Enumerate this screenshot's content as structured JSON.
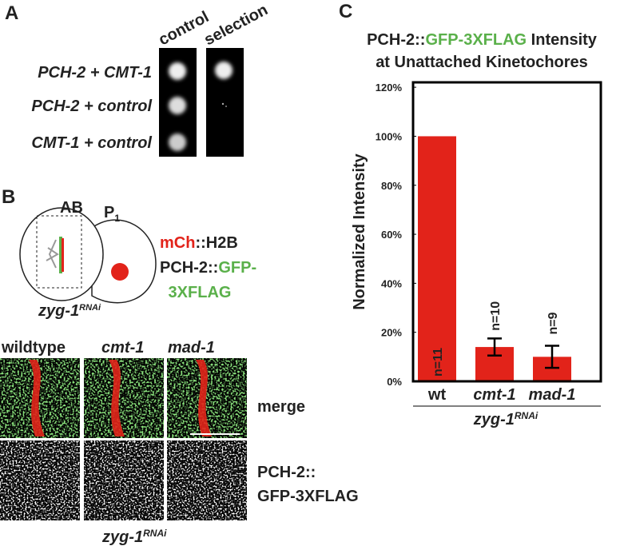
{
  "panel_a": {
    "label": "A",
    "columns": [
      "control",
      "selection"
    ],
    "rows": [
      "PCH-2 + CMT-1",
      "PCH-2 + control",
      "CMT-1 + control"
    ]
  },
  "panel_b": {
    "label": "B",
    "cell": {
      "ab": "AB",
      "p": "P",
      "p_sub": "1"
    },
    "rnai": {
      "gene": "zyg-1",
      "superscript": "RNAi"
    },
    "legend": [
      [
        {
          "text": "mCh",
          "color": "#e2231a"
        },
        {
          "text": "::H2B"
        }
      ],
      [
        {
          "text": "PCH-2::"
        },
        {
          "text": "GFP-",
          "color": "#5ab04a"
        }
      ],
      [
        {
          "text": "3XFLAG",
          "color": "#5ab04a"
        }
      ]
    ],
    "columns": [
      "wildtype",
      "cmt-1",
      "mad-1"
    ],
    "rows": [
      [
        {
          "text": "merge"
        }
      ],
      [
        {
          "text": "PCH-2::"
        },
        {
          "text": "GFP-3XFLAG",
          "color": "#5ab04a"
        }
      ]
    ],
    "footer": {
      "gene": "zyg-1",
      "superscript": "RNAi"
    }
  },
  "panel_c_label": "C",
  "chart_data": {
    "type": "bar",
    "title": [
      [
        {
          "text": "PCH-2::"
        },
        {
          "text": "GFP-3XFLAG",
          "color": "#5ab04a"
        },
        {
          "text": " Intensity"
        }
      ],
      [
        {
          "text": "at Unattached Kinetochores"
        }
      ]
    ],
    "y_label": "Normalized Intensity",
    "categories": [
      "wt",
      "cmt-1",
      "mad-1"
    ],
    "values": [
      100,
      14,
      10
    ],
    "errors": [
      null,
      3.5,
      4.5
    ],
    "annotations": [
      "n=11",
      "n=10",
      "n=9"
    ],
    "color": "#e2231a",
    "ylim": [
      0,
      122
    ],
    "yticks": [
      {
        "value": 0,
        "label": "0%"
      },
      {
        "value": 20,
        "label": "20%"
      },
      {
        "value": 40,
        "label": "40%"
      },
      {
        "value": 60,
        "label": "60%"
      },
      {
        "value": 80,
        "label": "80%"
      },
      {
        "value": 100,
        "label": "100%"
      },
      {
        "value": 120,
        "label": "120%"
      }
    ],
    "grid": false,
    "x_label": {
      "gene": "zyg-1",
      "superscript": "RNAi"
    }
  }
}
